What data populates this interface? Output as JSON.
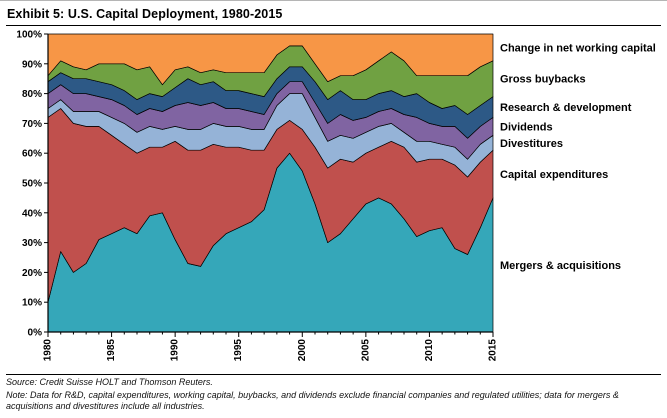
{
  "figure": {
    "title": "Exhibit 5: U.S. Capital Deployment, 1980-2015",
    "source": "Source: Credit Suisse HOLT and Thomson Reuters.",
    "note": "Note: Data for R&D, capital expenditures, working capital, buybacks, and dividends exclude financial companies and regulated utilities; data for mergers & acquisitions and divestitures include all industries."
  },
  "chart_data": {
    "type": "area",
    "stacked": true,
    "normalized": true,
    "unit": "percent of total capital deployment",
    "title": "U.S. Capital Deployment, 1980-2015",
    "xlabel": "",
    "ylabel": "",
    "ylim": [
      0,
      100
    ],
    "grid": false,
    "legend_position": "right",
    "outline_color": "#000000",
    "x": [
      1980,
      1981,
      1982,
      1983,
      1984,
      1985,
      1986,
      1987,
      1988,
      1989,
      1990,
      1991,
      1992,
      1993,
      1994,
      1995,
      1996,
      1997,
      1998,
      1999,
      2000,
      2001,
      2002,
      2003,
      2004,
      2005,
      2006,
      2007,
      2008,
      2009,
      2010,
      2011,
      2012,
      2013,
      2014,
      2015
    ],
    "x_tick_labels": [
      "1980",
      "1985",
      "1990",
      "1995",
      "2000",
      "2005",
      "2010",
      "2015"
    ],
    "y_ticks": [
      0,
      10,
      20,
      30,
      40,
      50,
      60,
      70,
      80,
      90,
      100
    ],
    "y_tick_suffix": "%",
    "series": [
      {
        "name": "Mergers & acquisitions",
        "color": "#35a7b9",
        "values": [
          10,
          27,
          20,
          23,
          31,
          33,
          35,
          33,
          39,
          40,
          31,
          23,
          22,
          29,
          33,
          35,
          37,
          41,
          55,
          60,
          54,
          43,
          30,
          33,
          38,
          43,
          45,
          43,
          38,
          32,
          34,
          35,
          28,
          26,
          35,
          45
        ]
      },
      {
        "name": "Capital expenditures",
        "color": "#c0504d",
        "values": [
          62,
          48,
          50,
          46,
          38,
          33,
          28,
          27,
          23,
          22,
          33,
          38,
          39,
          34,
          29,
          27,
          24,
          20,
          13,
          11,
          14,
          19,
          25,
          25,
          19,
          17,
          17,
          21,
          24,
          25,
          24,
          23,
          28,
          26,
          22,
          16
        ]
      },
      {
        "name": "Divestitures",
        "color": "#95b3d7",
        "values": [
          3,
          3,
          4,
          5,
          5,
          6,
          7,
          7,
          7,
          6,
          5,
          7,
          7,
          7,
          7,
          7,
          7,
          7,
          8,
          9,
          12,
          10,
          9,
          8,
          8,
          7,
          7,
          6,
          5,
          7,
          6,
          5,
          6,
          6,
          6,
          5
        ]
      },
      {
        "name": "Dividends",
        "color": "#8064a2",
        "values": [
          5,
          5,
          6,
          6,
          5,
          6,
          6,
          6,
          6,
          6,
          7,
          9,
          8,
          7,
          6,
          6,
          6,
          5,
          4,
          4,
          4,
          5,
          6,
          7,
          6,
          5,
          5,
          5,
          6,
          8,
          6,
          6,
          7,
          7,
          6,
          6
        ]
      },
      {
        "name": "Research & development",
        "color": "#2d5986",
        "values": [
          4,
          4,
          5,
          5,
          5,
          5,
          5,
          5,
          5,
          5,
          6,
          8,
          7,
          7,
          6,
          6,
          6,
          6,
          5,
          5,
          5,
          7,
          8,
          8,
          7,
          6,
          6,
          6,
          6,
          8,
          7,
          6,
          7,
          8,
          7,
          7
        ]
      },
      {
        "name": "Gross buybacks",
        "color": "#70a142",
        "values": [
          2,
          4,
          4,
          3,
          6,
          7,
          9,
          10,
          9,
          4,
          6,
          4,
          4,
          4,
          6,
          6,
          7,
          8,
          8,
          7,
          7,
          6,
          6,
          5,
          8,
          10,
          11,
          13,
          12,
          6,
          9,
          11,
          10,
          13,
          13,
          12
        ]
      },
      {
        "name": "Change in net working capital",
        "color": "#f79646",
        "values": [
          14,
          9,
          11,
          12,
          10,
          10,
          10,
          12,
          11,
          17,
          12,
          11,
          13,
          12,
          13,
          13,
          13,
          13,
          7,
          4,
          4,
          10,
          16,
          14,
          14,
          12,
          9,
          6,
          9,
          14,
          14,
          14,
          14,
          14,
          11,
          9
        ]
      }
    ]
  }
}
